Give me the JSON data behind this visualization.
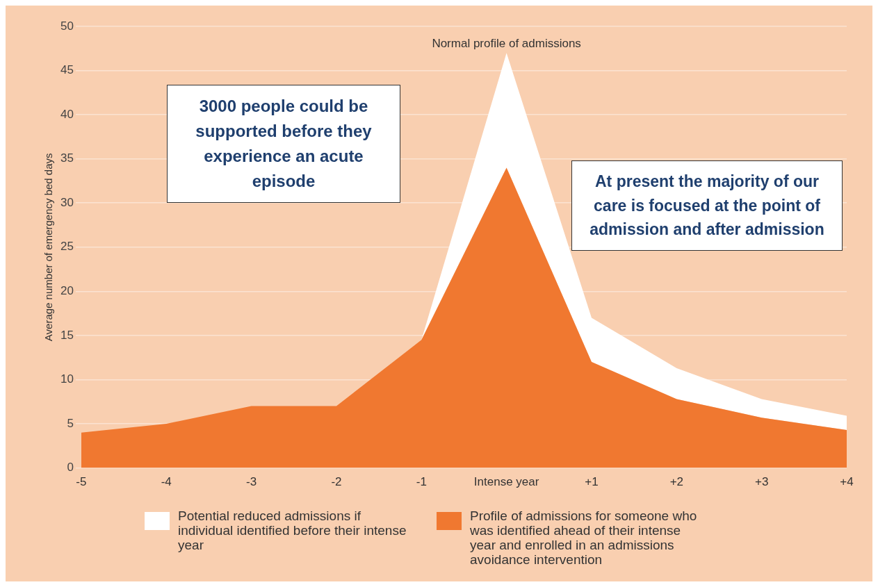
{
  "chart_data": {
    "type": "area",
    "ylabel": "Average number of emergency bed days",
    "categories": [
      "-5",
      "-4",
      "-3",
      "-2",
      "-1",
      "Intense year",
      "+1",
      "+2",
      "+3",
      "+4"
    ],
    "stacked": true,
    "series": [
      {
        "name": "Profile of admissions for someone who was identified ahead of their intense year and enrolled in an admissions avoidance intervention",
        "color": "#f07830",
        "values": [
          4,
          5,
          7,
          7,
          14.5,
          34,
          12,
          7.8,
          5.7,
          4.3
        ]
      },
      {
        "name": "Potential reduced admissions if individual identified before their intense year",
        "color": "#ffffff",
        "values": [
          0,
          0,
          0,
          0,
          0,
          13,
          5,
          3.5,
          2.1,
          1.6
        ]
      }
    ],
    "ylim": [
      0,
      50
    ],
    "yticks": [
      0,
      5,
      10,
      15,
      20,
      25,
      30,
      35,
      40,
      45,
      50
    ],
    "grid": "y",
    "legend": "bottom",
    "marker": "none",
    "annotations": [
      {
        "text": "Normal profile of admissions",
        "x": "Intense year",
        "y": 47
      },
      "3000 people could be supported before they experience an acute episode",
      "At present the majority of our care is focused at the point of admission and after admission"
    ]
  }
}
